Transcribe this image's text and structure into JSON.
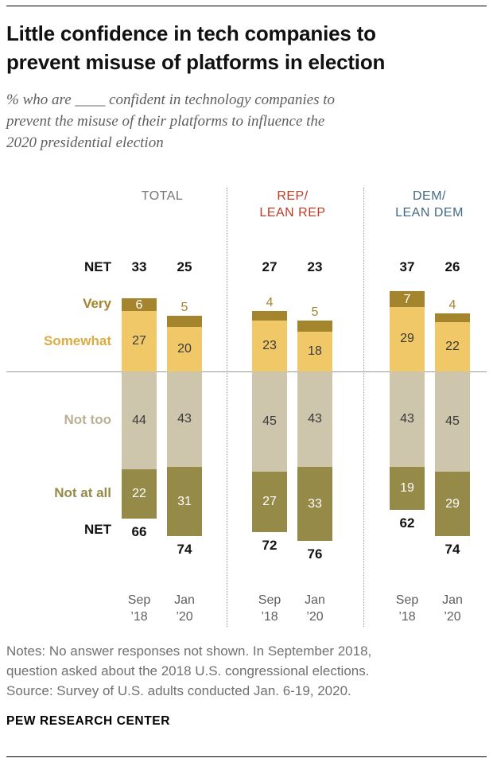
{
  "title_lines": [
    "Little confidence in tech companies to",
    "prevent misuse of platforms in election"
  ],
  "subtitle_lines": [
    "% who are ____ confident in technology companies to",
    "prevent the misuse of their platforms to influence the",
    "2020 presidential election"
  ],
  "chart_data": {
    "type": "bar",
    "variant": "diverging-stacked",
    "unit": "%",
    "title": "Little confidence in tech companies to prevent misuse of platforms in election",
    "subtitle": "% who are ____ confident in technology companies to prevent the misuse of their platforms to influence the 2020 presidential election",
    "row_labels": {
      "net_top": "NET",
      "very": "Very",
      "somewhat": "Somewhat",
      "not_too": "Not too",
      "not_at_all": "Not at all",
      "net_bottom": "NET"
    },
    "colors": {
      "very": "#a5842e",
      "somewhat": "#f0c868",
      "not_too": "#cdc5ac",
      "not_at_all": "#968a49",
      "somewhat_label": "#dcab44",
      "not_too_label": "#b9b094",
      "total_header": "#757575",
      "rep_header": "#bf3927",
      "dem_header": "#436983"
    },
    "groups": [
      {
        "label_lines": [
          "TOTAL"
        ],
        "color": "#757575",
        "bars": [
          {
            "x_label_lines": [
              "Sep",
              "’18"
            ],
            "net_confident": 33,
            "very": 6,
            "somewhat": 27,
            "not_too": 44,
            "not_at_all": 22,
            "net_not_confident": 66
          },
          {
            "x_label_lines": [
              "Jan",
              "’20"
            ],
            "net_confident": 25,
            "very": 5,
            "somewhat": 20,
            "not_too": 43,
            "not_at_all": 31,
            "net_not_confident": 74
          }
        ]
      },
      {
        "label_lines": [
          "REP/",
          "LEAN REP"
        ],
        "color": "#bf3927",
        "bars": [
          {
            "x_label_lines": [
              "Sep",
              "’18"
            ],
            "net_confident": 27,
            "very": 4,
            "somewhat": 23,
            "not_too": 45,
            "not_at_all": 27,
            "net_not_confident": 72
          },
          {
            "x_label_lines": [
              "Jan",
              "’20"
            ],
            "net_confident": 23,
            "very": 5,
            "somewhat": 18,
            "not_too": 43,
            "not_at_all": 33,
            "net_not_confident": 76
          }
        ]
      },
      {
        "label_lines": [
          "DEM/",
          "LEAN DEM"
        ],
        "color": "#436983",
        "bars": [
          {
            "x_label_lines": [
              "Sep",
              "’18"
            ],
            "net_confident": 37,
            "very": 7,
            "somewhat": 29,
            "not_too": 43,
            "not_at_all": 19,
            "net_not_confident": 62
          },
          {
            "x_label_lines": [
              "Jan",
              "’20"
            ],
            "net_confident": 26,
            "very": 4,
            "somewhat": 22,
            "not_too": 45,
            "not_at_all": 29,
            "net_not_confident": 74
          }
        ]
      }
    ]
  },
  "notes_lines": [
    "Notes: No answer responses not shown. In September 2018,",
    "question asked about the 2018 U.S. congressional elections.",
    "Source: Survey of U.S. adults conducted Jan. 6-19, 2020."
  ],
  "footer": "PEW RESEARCH CENTER"
}
